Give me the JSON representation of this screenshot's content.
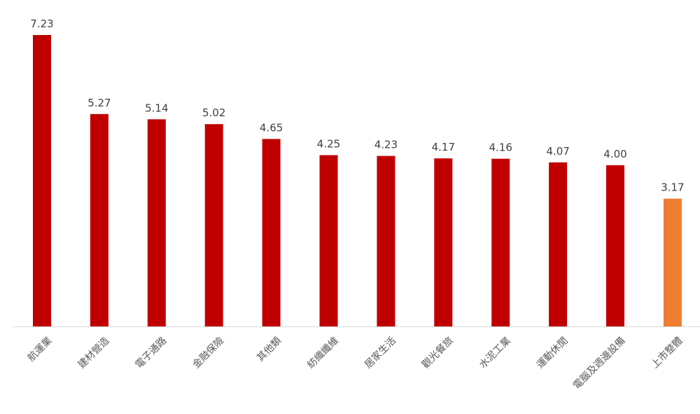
{
  "chart_data": {
    "type": "bar",
    "categories": [
      "航運業",
      "建材營造",
      "電子通路",
      "金融保險",
      "其他類",
      "紡織纖維",
      "居家生活",
      "觀光餐旅",
      "水泥工業",
      "運動休閒",
      "電腦及週邊設備",
      "上市整體"
    ],
    "values": [
      7.23,
      5.27,
      5.14,
      5.02,
      4.65,
      4.25,
      4.23,
      4.17,
      4.16,
      4.07,
      4.0,
      3.17
    ],
    "value_labels": [
      "7.23",
      "5.27",
      "5.14",
      "5.02",
      "4.65",
      "4.25",
      "4.23",
      "4.17",
      "4.16",
      "4.07",
      "4.00",
      "3.17"
    ],
    "ylim": [
      0,
      7.23
    ],
    "grid": false,
    "legend": "none",
    "colors": {
      "bar": "#C00000",
      "highlight": "#ED7D31",
      "axis": "#D9D9D9"
    },
    "highlight_index": 11
  }
}
